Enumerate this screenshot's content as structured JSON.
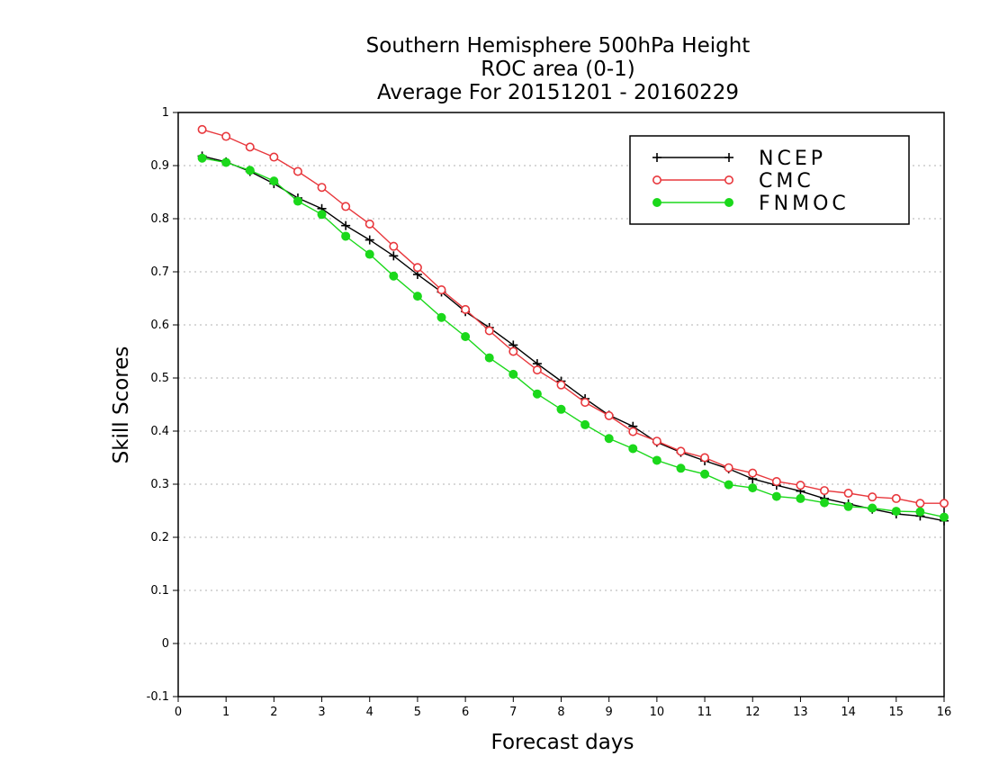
{
  "chart_data": {
    "type": "line",
    "title": [
      "Southern Hemisphere 500hPa Height",
      "ROC area (0-1)",
      "Average For 20151201 - 20160229"
    ],
    "xlabel": "Forecast days",
    "ylabel": "Skill Scores",
    "xlim": [
      0,
      16
    ],
    "ylim": [
      -0.1,
      1
    ],
    "xticks": [
      0,
      1,
      2,
      3,
      4,
      5,
      6,
      7,
      8,
      9,
      10,
      11,
      12,
      13,
      14,
      15,
      16
    ],
    "yticks": [
      -0.1,
      0,
      0.1,
      0.2,
      0.3,
      0.4,
      0.5,
      0.6,
      0.7,
      0.8,
      0.9,
      1
    ],
    "ytick_labels": [
      "-0.1",
      "0",
      "0.1",
      "0.2",
      "0.3",
      "0.4",
      "0.5",
      "0.6",
      "0.7",
      "0.8",
      "0.9",
      "1"
    ],
    "grid": true,
    "legend_position": "top-right",
    "x": [
      0.5,
      1.0,
      1.5,
      2.0,
      2.5,
      3.0,
      3.5,
      4.0,
      4.5,
      5.0,
      5.5,
      6.0,
      6.5,
      7.0,
      7.5,
      8.0,
      8.5,
      9.0,
      9.5,
      10.0,
      10.5,
      11.0,
      11.5,
      12.0,
      12.5,
      13.0,
      13.5,
      14.0,
      14.5,
      15.0,
      15.5,
      16.0
    ],
    "series": [
      {
        "name": "NCEP",
        "color": "#000000",
        "marker": "plus",
        "values": [
          0.918,
          0.907,
          0.889,
          0.866,
          0.839,
          0.819,
          0.787,
          0.76,
          0.73,
          0.695,
          0.662,
          0.625,
          0.595,
          0.562,
          0.527,
          0.494,
          0.461,
          0.43,
          0.409,
          0.379,
          0.36,
          0.344,
          0.329,
          0.31,
          0.298,
          0.287,
          0.273,
          0.263,
          0.253,
          0.244,
          0.24,
          0.231
        ]
      },
      {
        "name": "CMC",
        "color": "#e8383d",
        "marker": "open-circle",
        "values": [
          0.968,
          0.955,
          0.935,
          0.916,
          0.889,
          0.859,
          0.823,
          0.79,
          0.748,
          0.708,
          0.666,
          0.629,
          0.589,
          0.55,
          0.515,
          0.487,
          0.454,
          0.429,
          0.399,
          0.381,
          0.362,
          0.35,
          0.331,
          0.321,
          0.305,
          0.298,
          0.288,
          0.283,
          0.276,
          0.273,
          0.264,
          0.264
        ]
      },
      {
        "name": "FNMOC",
        "color": "#1bd81b",
        "marker": "filled-circle",
        "values": [
          0.914,
          0.906,
          0.891,
          0.871,
          0.833,
          0.808,
          0.767,
          0.733,
          0.692,
          0.654,
          0.614,
          0.578,
          0.538,
          0.507,
          0.47,
          0.441,
          0.412,
          0.386,
          0.367,
          0.345,
          0.33,
          0.319,
          0.299,
          0.293,
          0.277,
          0.273,
          0.265,
          0.258,
          0.255,
          0.249,
          0.248,
          0.238
        ]
      }
    ]
  }
}
